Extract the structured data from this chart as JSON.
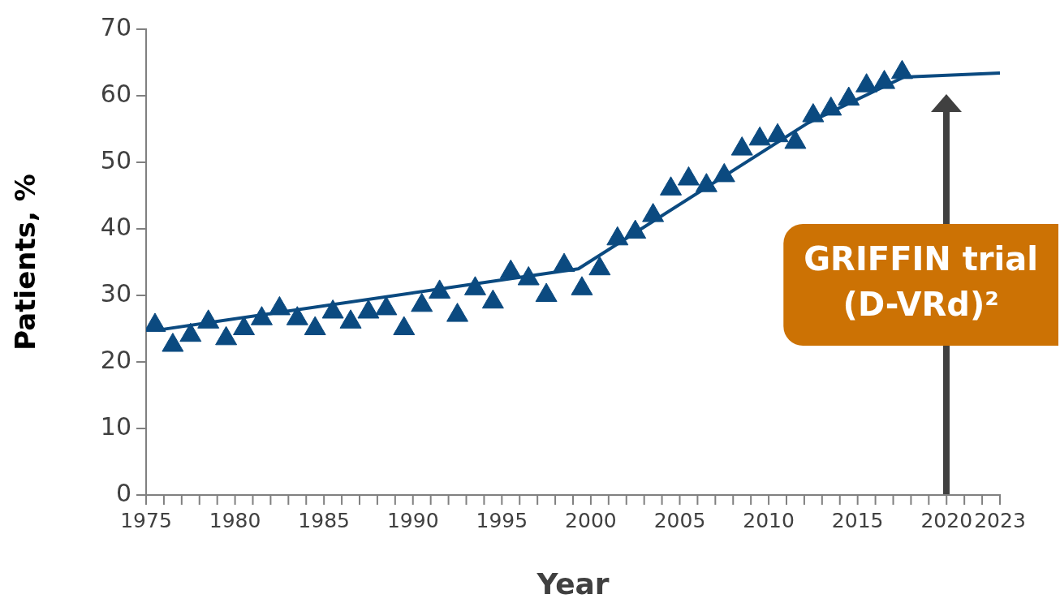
{
  "chart_data": {
    "type": "scatter",
    "xlabel": "Year",
    "ylabel": "Patients, %",
    "xlim": [
      1975,
      2023
    ],
    "ylim": [
      0,
      70
    ],
    "yticks": [
      0,
      10,
      20,
      30,
      40,
      50,
      60,
      70
    ],
    "xticks": [
      1975,
      {
        "value": 1976,
        "label": null
      },
      {
        "value": 1977,
        "label": null
      },
      {
        "value": 1978,
        "label": null
      },
      {
        "value": 1979,
        "label": null
      },
      1980,
      {
        "value": 1981,
        "label": null
      },
      {
        "value": 1982,
        "label": null
      },
      {
        "value": 1983,
        "label": null
      },
      {
        "value": 1984,
        "label": null
      },
      1985,
      {
        "value": 1986,
        "label": null
      },
      {
        "value": 1987,
        "label": null
      },
      {
        "value": 1988,
        "label": null
      },
      {
        "value": 1989,
        "label": null
      },
      1990,
      {
        "value": 1991,
        "label": null
      },
      {
        "value": 1992,
        "label": null
      },
      {
        "value": 1993,
        "label": null
      },
      {
        "value": 1994,
        "label": null
      },
      1995,
      {
        "value": 1996,
        "label": null
      },
      {
        "value": 1997,
        "label": null
      },
      {
        "value": 1998,
        "label": null
      },
      {
        "value": 1999,
        "label": null
      },
      2000,
      {
        "value": 2001,
        "label": null
      },
      {
        "value": 2002,
        "label": null
      },
      {
        "value": 2003,
        "label": null
      },
      {
        "value": 2004,
        "label": null
      },
      2005,
      {
        "value": 2006,
        "label": null
      },
      {
        "value": 2007,
        "label": null
      },
      {
        "value": 2008,
        "label": null
      },
      {
        "value": 2009,
        "label": null
      },
      2010,
      {
        "value": 2011,
        "label": null
      },
      {
        "value": 2012,
        "label": null
      },
      {
        "value": 2013,
        "label": null
      },
      {
        "value": 2014,
        "label": null
      },
      2015,
      {
        "value": 2016,
        "label": null
      },
      {
        "value": 2017,
        "label": null
      },
      {
        "value": 2018,
        "label": null
      },
      {
        "value": 2019,
        "label": null
      },
      2020,
      {
        "value": 2021,
        "label": null
      },
      {
        "value": 2022,
        "label": null
      },
      2023
    ],
    "grid": false,
    "legend": false,
    "series": [
      {
        "color": "#0b4a80",
        "marker": "triangle",
        "x": [
          1975.5,
          1976.5,
          1977.5,
          1978.5,
          1979.5,
          1980.5,
          1981.5,
          1982.5,
          1983.5,
          1984.5,
          1985.5,
          1986.5,
          1987.5,
          1988.5,
          1989.5,
          1990.5,
          1991.5,
          1992.5,
          1993.5,
          1994.5,
          1995.5,
          1996.5,
          1997.5,
          1998.5,
          1999.5,
          2000.5,
          2001.5,
          2002.5,
          2003.5,
          2004.5,
          2005.5,
          2006.5,
          2007.5,
          2008.5,
          2009.5,
          2010.5,
          2011.5,
          2012.5,
          2013.5,
          2014.5,
          2015.5,
          2016.5,
          2017.5
        ],
        "values": [
          25.5,
          22.5,
          24,
          26,
          23.5,
          25,
          26.5,
          28,
          26.5,
          25,
          27.5,
          26,
          27.5,
          28,
          25,
          28.5,
          30.5,
          27,
          31,
          29,
          33.5,
          32.5,
          30,
          34.5,
          31,
          34,
          38.5,
          39.5,
          42,
          46,
          47.5,
          46.5,
          48,
          52,
          53.5,
          54,
          53,
          57,
          58,
          59.5,
          61.5,
          62,
          63.5
        ]
      },
      {
        "type": "line",
        "color": "#0b4a80",
        "marker": "none",
        "line_style": "solid",
        "x": [
          1975.7,
          1999.3,
          2012.2,
          2017.6,
          2023
        ],
        "values": [
          24.8,
          34,
          55.9,
          62.8,
          63.4
        ]
      }
    ],
    "ref_lines": [
      {
        "axis": "x",
        "value": 2020,
        "label": "GRIFFIN trial (D-VRd)²",
        "color": "#404040"
      }
    ]
  }
}
